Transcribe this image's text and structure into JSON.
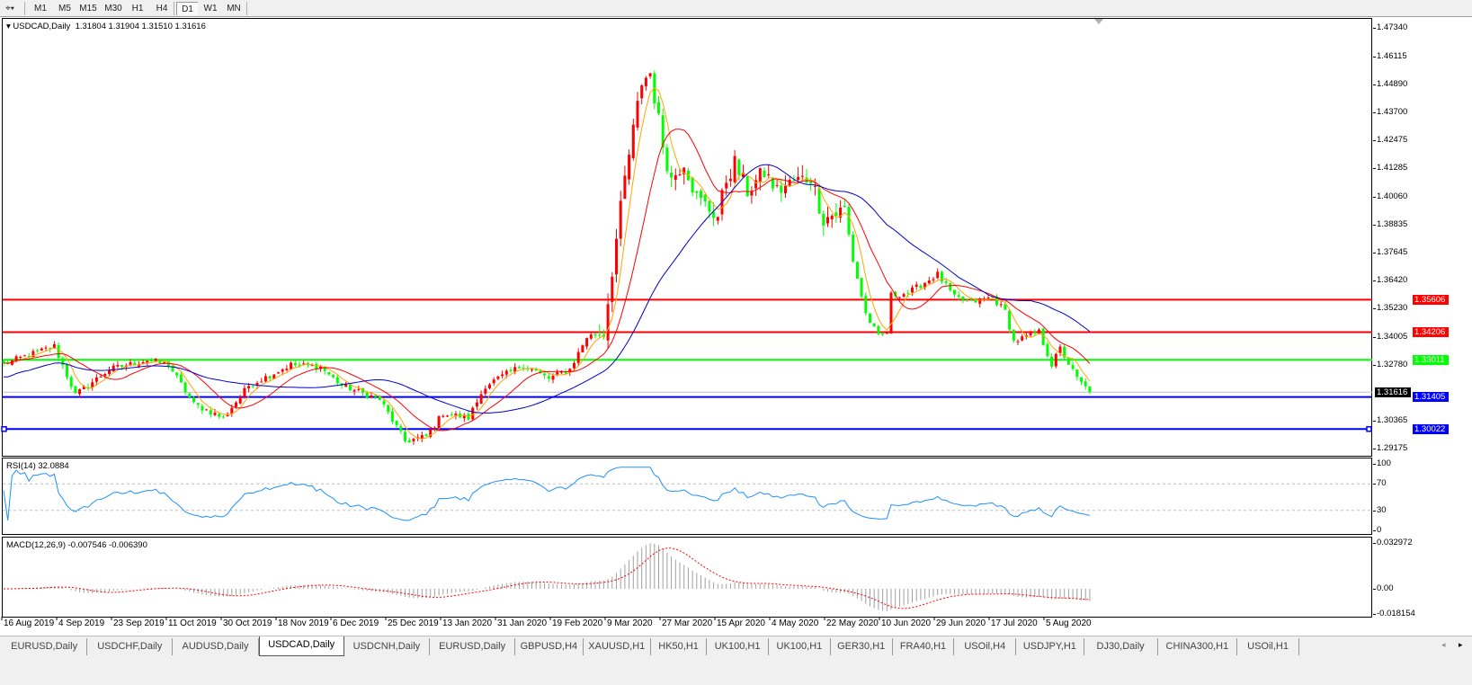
{
  "toolbar": {
    "timeframes": [
      "M1",
      "M5",
      "M15",
      "M30",
      "H1",
      "H4",
      "D1",
      "W1",
      "MN"
    ],
    "active_timeframe": "D1"
  },
  "chart": {
    "title": "USDCAD,Daily",
    "ohlc": "1.31804 1.31904 1.31510 1.31616",
    "price_axis": [
      "1.47340",
      "1.46115",
      "1.44890",
      "1.43700",
      "1.42475",
      "1.41285",
      "1.40060",
      "1.38835",
      "1.37645",
      "1.36420",
      "1.35230",
      "1.34005",
      "1.32780",
      "1.30365",
      "1.29175"
    ],
    "current_price": "1.31616",
    "levels": [
      {
        "price": "1.35606",
        "color": "#ff0000"
      },
      {
        "price": "1.34206",
        "color": "#ff0000"
      },
      {
        "price": "1.33011",
        "color": "#00ff00"
      },
      {
        "price": "1.31405",
        "color": "#0000ff"
      },
      {
        "price": "1.30022",
        "color": "#0000ff"
      }
    ],
    "colors": {
      "up": "#ff0000",
      "down": "#00ff00",
      "ma_fast": "#ffa500",
      "ma_mid": "#ff0000",
      "ma_slow": "#0000cd"
    },
    "close_path": [
      [
        0,
        1.3283
      ],
      [
        12,
        1.336
      ],
      [
        17,
        1.315
      ],
      [
        25,
        1.326
      ],
      [
        34,
        1.33
      ],
      [
        39,
        1.328
      ],
      [
        45,
        1.311
      ],
      [
        52,
        1.305
      ],
      [
        58,
        1.319
      ],
      [
        68,
        1.328
      ],
      [
        75,
        1.327
      ],
      [
        80,
        1.319
      ],
      [
        89,
        1.313
      ],
      [
        95,
        1.295
      ],
      [
        100,
        1.297
      ],
      [
        104,
        1.307
      ],
      [
        110,
        1.305
      ],
      [
        114,
        1.319
      ],
      [
        123,
        1.328
      ],
      [
        129,
        1.322
      ],
      [
        134,
        1.326
      ],
      [
        138,
        1.34
      ],
      [
        142,
        1.342
      ],
      [
        144,
        1.369
      ],
      [
        147,
        1.408
      ],
      [
        151,
        1.45
      ],
      [
        153,
        1.454
      ],
      [
        156,
        1.423
      ],
      [
        158,
        1.408
      ],
      [
        161,
        1.416
      ],
      [
        164,
        1.4
      ],
      [
        169,
        1.392
      ],
      [
        171,
        1.408
      ],
      [
        173,
        1.415
      ],
      [
        176,
        1.403
      ],
      [
        180,
        1.411
      ],
      [
        183,
        1.403
      ],
      [
        187,
        1.407
      ],
      [
        191,
        1.409
      ],
      [
        194,
        1.391
      ],
      [
        199,
        1.395
      ],
      [
        201,
        1.373
      ],
      [
        204,
        1.35
      ],
      [
        207,
        1.34
      ],
      [
        209,
        1.342
      ],
      [
        210,
        1.358
      ],
      [
        214,
        1.359
      ],
      [
        221,
        1.367
      ],
      [
        225,
        1.357
      ],
      [
        229,
        1.355
      ],
      [
        234,
        1.357
      ],
      [
        237,
        1.351
      ],
      [
        239,
        1.338
      ],
      [
        242,
        1.34
      ],
      [
        245,
        1.342
      ],
      [
        248,
        1.328
      ],
      [
        250,
        1.335
      ],
      [
        254,
        1.322
      ],
      [
        257,
        1.3162
      ]
    ]
  },
  "rsi": {
    "title": "RSI(14) 32.0884",
    "axis": [
      "100",
      "70",
      "30",
      "0"
    ]
  },
  "macd": {
    "title": "MACD(12,26,9) -0.007546 -0.006390",
    "axis": [
      "0.032972",
      "0.00",
      "-0.018154"
    ],
    "signal_color": "#ff0000",
    "hist_color": "#a0a0a0"
  },
  "date_axis": [
    "16 Aug 2019",
    "4 Sep 2019",
    "23 Sep 2019",
    "11 Oct 2019",
    "30 Oct 2019",
    "18 Nov 2019",
    "6 Dec 2019",
    "25 Dec 2019",
    "13 Jan 2020",
    "31 Jan 2020",
    "19 Feb 2020",
    "9 Mar 2020",
    "27 Mar 2020",
    "15 Apr 2020",
    "4 May 2020",
    "22 May 2020",
    "10 Jun 2020",
    "29 Jun 2020",
    "17 Jul 2020",
    "5 Aug 2020"
  ],
  "tabs": [
    "EURUSD,Daily",
    "USDCHF,Daily",
    "AUDUSD,Daily",
    "USDCAD,Daily",
    "USDCNH,Daily",
    "EURUSD,Daily",
    "GBPUSD,H4",
    "XAUUSD,H1",
    "HK50,H1",
    "UK100,H1",
    "UK100,H1",
    "GER30,H1",
    "FRA40,H1",
    "USOil,H4",
    "USDJPY,H1",
    "DJ30,Daily",
    "CHINA300,H1",
    "USOil,H1"
  ],
  "active_tab": "USDCAD,Daily"
}
